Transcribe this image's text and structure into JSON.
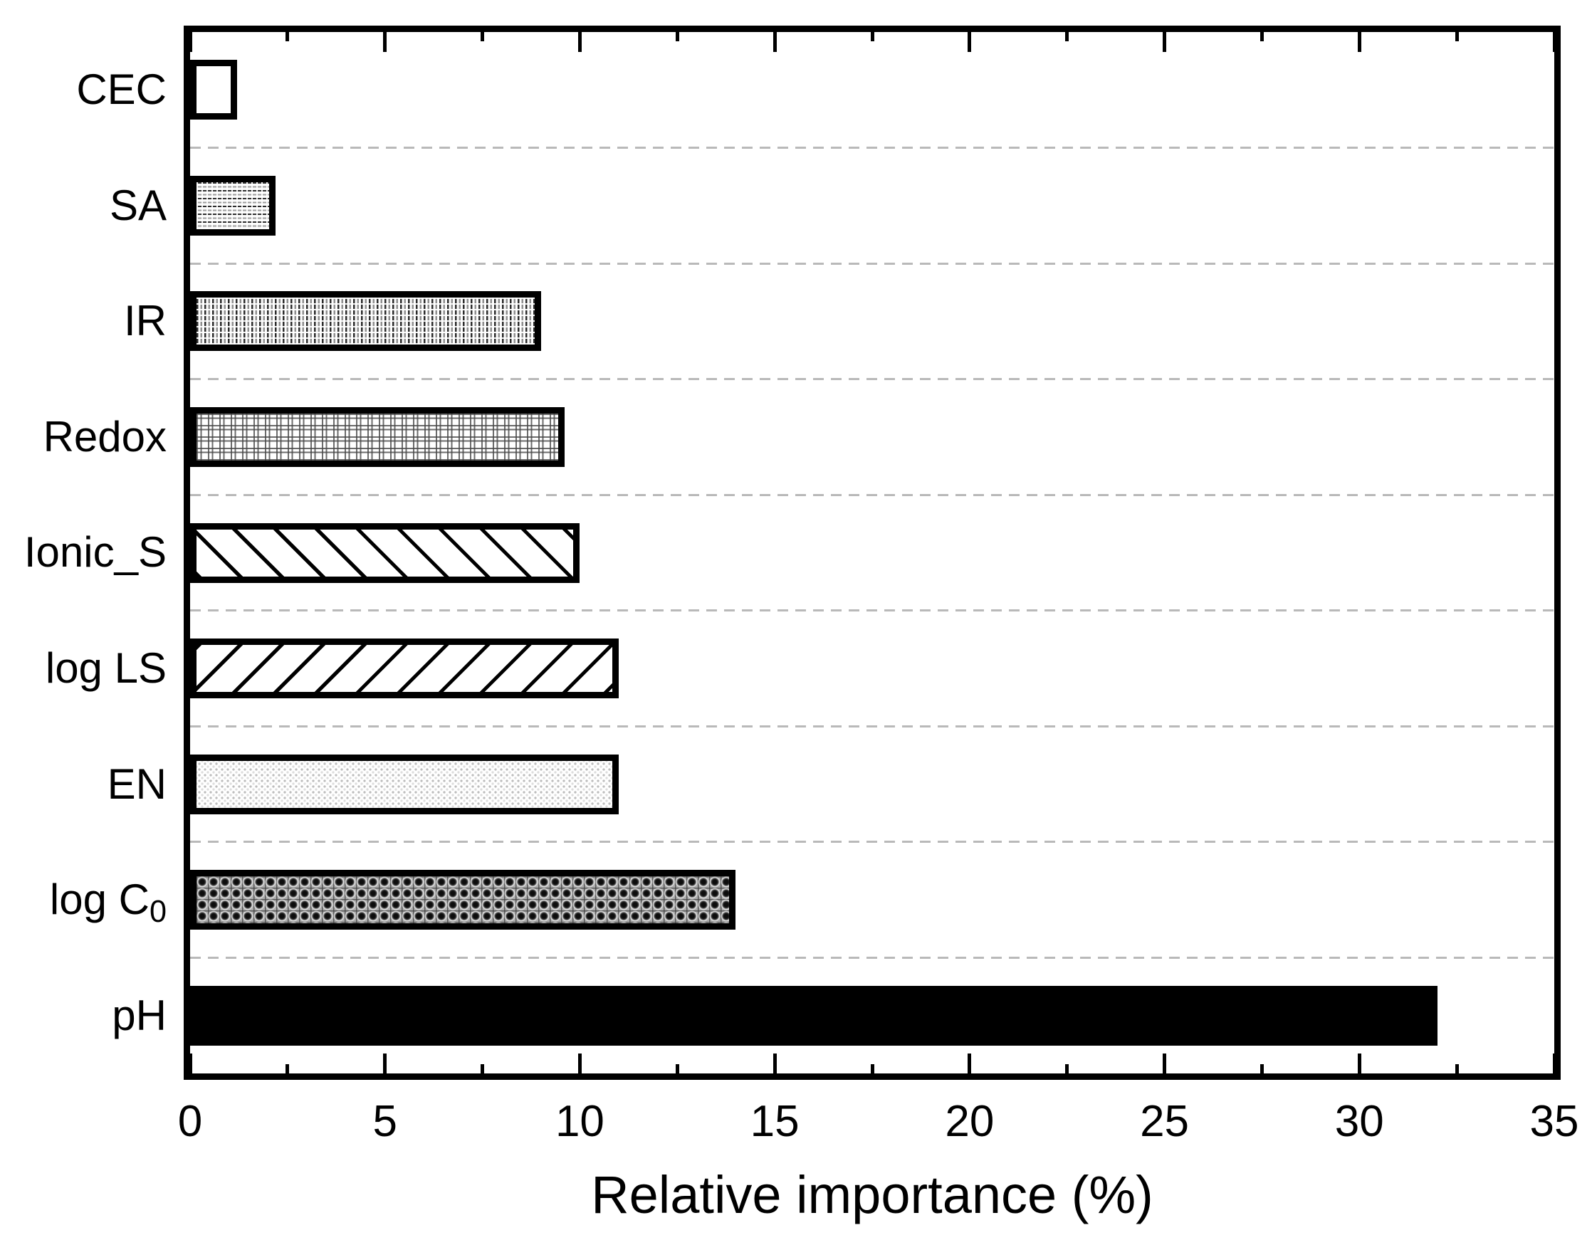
{
  "figure": {
    "background": "#ffffff"
  },
  "chart_data": {
    "type": "bar",
    "orientation": "horizontal",
    "title": "",
    "xlabel": "Relative importance (%)",
    "ylabel": "",
    "xlim": [
      0,
      35
    ],
    "x_major_tick_step": 5,
    "x_minor_tick_step": 2.5,
    "x_tick_labels": [
      "0",
      "5",
      "10",
      "15",
      "20",
      "25",
      "30",
      "35"
    ],
    "grid": "dashed gray horizontal separator between each category band",
    "legend": "none",
    "bars": [
      {
        "label": "CEC",
        "label_sub": "",
        "value": 1.2,
        "pattern": "plain-white"
      },
      {
        "label": "SA",
        "label_sub": "",
        "value": 2.2,
        "pattern": "horizontal-dashes"
      },
      {
        "label": "IR",
        "label_sub": "",
        "value": 9.0,
        "pattern": "vertical-dashes"
      },
      {
        "label": "Redox",
        "label_sub": "",
        "value": 9.6,
        "pattern": "fine-grid"
      },
      {
        "label": "Ionic_S",
        "label_sub": "",
        "value": 10.0,
        "pattern": "diagonal-backslash"
      },
      {
        "label": "log LS",
        "label_sub": "",
        "value": 11.0,
        "pattern": "diagonal-slash"
      },
      {
        "label": "EN",
        "label_sub": "",
        "value": 11.0,
        "pattern": "light-dots"
      },
      {
        "label": "log C",
        "label_sub": "0",
        "value": 14.0,
        "pattern": "dense-dots"
      },
      {
        "label": "pH",
        "label_sub": "",
        "value": 32.0,
        "pattern": "solid-black"
      }
    ],
    "colors": {
      "bar_border": "#000000",
      "axis": "#000000",
      "grid_line": "#b9b9b9",
      "text": "#000000",
      "background": "#ffffff"
    }
  }
}
